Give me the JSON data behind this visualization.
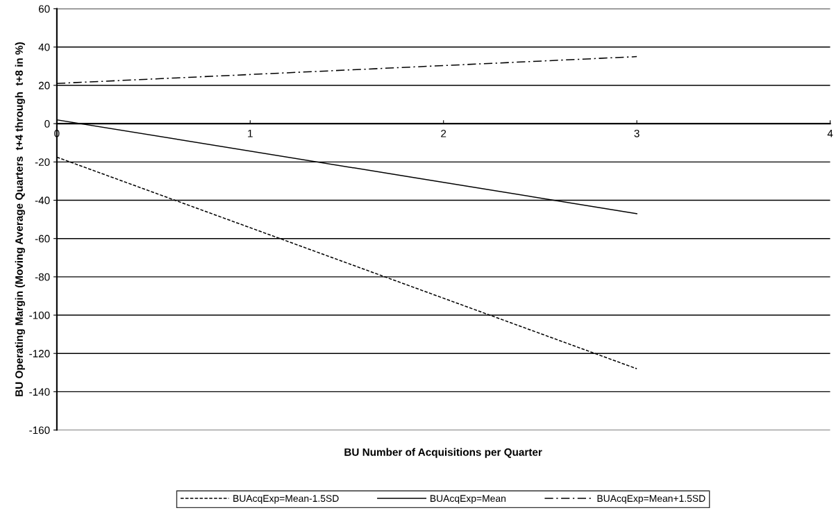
{
  "chart_data": {
    "type": "line",
    "xlabel": "BU Number of Acquisitions per Quarter",
    "ylabel": "BU Operating Margin (Moving Average Quarters  t+4 through  t+8 in %)",
    "x": [
      0,
      3
    ],
    "series": [
      {
        "name": "BUAcqExp=Mean-1.5SD",
        "color": "#000000",
        "line_style": "dashed",
        "values": [
          -17.5,
          -128
        ]
      },
      {
        "name": "BUAcqExp=Mean",
        "color": "#000000",
        "line_style": "solid",
        "values": [
          2,
          -47
        ]
      },
      {
        "name": "BUAcqExp=Mean+1.5SD",
        "color": "#000000",
        "line_style": "dashdot",
        "values": [
          21,
          35
        ]
      }
    ],
    "xlim": [
      0,
      4
    ],
    "xticks": [
      0,
      1,
      2,
      3,
      4
    ],
    "ylim": [
      -160,
      60
    ],
    "yticks": [
      -160,
      -140,
      -120,
      -100,
      -80,
      -60,
      -40,
      -20,
      0,
      20,
      40,
      60
    ],
    "grid": "y",
    "legend": "bottom",
    "marker": "none"
  }
}
